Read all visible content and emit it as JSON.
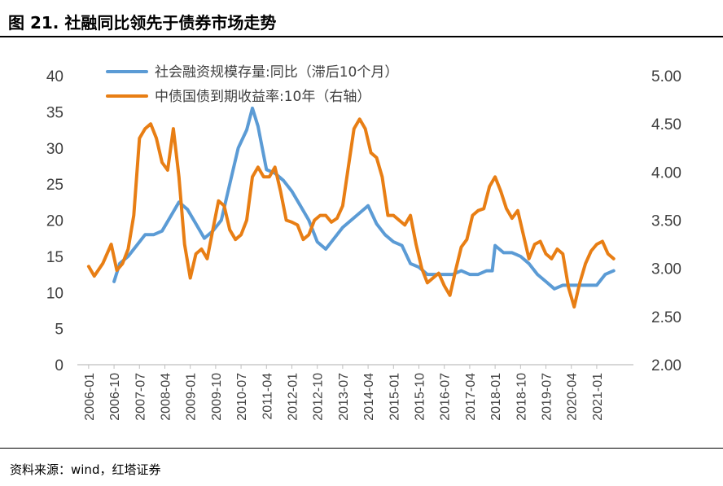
{
  "figure": {
    "title": "图 21. 社融同比领先于债券市场走势",
    "source": "资料来源：wind，红塔证券"
  },
  "chart_data": {
    "type": "line",
    "title": "",
    "legend_placement": "top-center",
    "grid": false,
    "y_left": {
      "min": 0,
      "max": 40,
      "ticks": [
        "0",
        "5",
        "10",
        "15",
        "20",
        "25",
        "30",
        "35",
        "40"
      ]
    },
    "y_right": {
      "min": 2.0,
      "max": 5.0,
      "ticks": [
        "2.00",
        "2.50",
        "3.00",
        "3.50",
        "4.00",
        "4.50",
        "5.00"
      ]
    },
    "x_ticks": [
      "2006-01",
      "2006-10",
      "2007-07",
      "2008-04",
      "2009-01",
      "2009-10",
      "2010-07",
      "2011-04",
      "2012-01",
      "2012-10",
      "2013-07",
      "2014-04",
      "2015-01",
      "2015-10",
      "2016-07",
      "2017-04",
      "2018-01",
      "2018-10",
      "2019-07",
      "2020-04",
      "2021-01"
    ],
    "series": [
      {
        "name": "社会融资规模存量:同比（滞后10个月）",
        "axis": "left",
        "color": "#5B9BD5",
        "x": [
          "2006-10",
          "2006-12",
          "2007-03",
          "2007-06",
          "2007-09",
          "2007-12",
          "2008-03",
          "2008-06",
          "2008-09",
          "2008-12",
          "2009-03",
          "2009-06",
          "2009-09",
          "2009-12",
          "2010-03",
          "2010-06",
          "2010-09",
          "2010-11",
          "2011-01",
          "2011-04",
          "2011-07",
          "2011-10",
          "2012-01",
          "2012-04",
          "2012-07",
          "2012-10",
          "2013-01",
          "2013-04",
          "2013-07",
          "2013-10",
          "2014-01",
          "2014-04",
          "2014-07",
          "2014-10",
          "2015-01",
          "2015-04",
          "2015-07",
          "2015-10",
          "2016-01",
          "2016-04",
          "2016-07",
          "2016-10",
          "2017-01",
          "2017-04",
          "2017-07",
          "2017-10",
          "2017-12",
          "2018-01",
          "2018-04",
          "2018-07",
          "2018-10",
          "2019-01",
          "2019-04",
          "2019-07",
          "2019-10",
          "2020-01",
          "2020-04",
          "2020-07",
          "2020-10",
          "2021-01",
          "2021-04",
          "2021-07"
        ],
        "y": [
          11.5,
          14,
          15,
          16.5,
          18,
          18,
          18.5,
          20.5,
          22.5,
          21.5,
          19.5,
          17.5,
          18.5,
          20,
          25,
          30,
          32.5,
          35.5,
          33,
          27,
          26.5,
          25.5,
          24,
          22,
          20,
          17,
          16,
          17.5,
          19,
          20,
          21,
          22,
          19.5,
          18,
          17,
          16.5,
          14,
          13.5,
          12.5,
          12.5,
          12.5,
          12.5,
          13,
          12.5,
          12.5,
          13,
          13,
          16.5,
          15.5,
          15.5,
          15,
          14,
          12.5,
          11.5,
          10.5,
          11,
          11,
          11,
          11,
          11,
          12.5,
          13
        ]
      },
      {
        "name": "中债国债到期收益率:10年（右轴）",
        "axis": "right",
        "color": "#E87E14",
        "x": [
          "2006-01",
          "2006-03",
          "2006-06",
          "2006-09",
          "2006-11",
          "2007-01",
          "2007-03",
          "2007-05",
          "2007-07",
          "2007-09",
          "2007-11",
          "2008-01",
          "2008-03",
          "2008-05",
          "2008-07",
          "2008-09",
          "2008-11",
          "2009-01",
          "2009-03",
          "2009-05",
          "2009-07",
          "2009-09",
          "2009-11",
          "2010-01",
          "2010-03",
          "2010-05",
          "2010-07",
          "2010-09",
          "2010-11",
          "2011-01",
          "2011-03",
          "2011-05",
          "2011-07",
          "2011-09",
          "2011-11",
          "2012-01",
          "2012-03",
          "2012-05",
          "2012-07",
          "2012-09",
          "2012-11",
          "2013-01",
          "2013-03",
          "2013-05",
          "2013-07",
          "2013-09",
          "2013-11",
          "2014-01",
          "2014-03",
          "2014-05",
          "2014-07",
          "2014-09",
          "2014-11",
          "2015-01",
          "2015-03",
          "2015-05",
          "2015-07",
          "2015-09",
          "2015-11",
          "2016-01",
          "2016-03",
          "2016-05",
          "2016-07",
          "2016-09",
          "2016-11",
          "2017-01",
          "2017-03",
          "2017-05",
          "2017-07",
          "2017-09",
          "2017-11",
          "2018-01",
          "2018-03",
          "2018-05",
          "2018-07",
          "2018-09",
          "2018-11",
          "2019-01",
          "2019-03",
          "2019-05",
          "2019-07",
          "2019-09",
          "2019-11",
          "2020-01",
          "2020-03",
          "2020-05",
          "2020-07",
          "2020-09",
          "2020-11",
          "2021-01",
          "2021-03",
          "2021-05",
          "2021-07"
        ],
        "y": [
          3.02,
          2.92,
          3.05,
          3.25,
          2.98,
          3.05,
          3.2,
          3.55,
          4.35,
          4.45,
          4.5,
          4.35,
          4.1,
          4.02,
          4.45,
          3.95,
          3.25,
          2.9,
          3.15,
          3.2,
          3.1,
          3.4,
          3.7,
          3.65,
          3.4,
          3.3,
          3.35,
          3.5,
          3.95,
          4.05,
          3.95,
          3.95,
          4.05,
          3.8,
          3.5,
          3.48,
          3.45,
          3.3,
          3.35,
          3.5,
          3.55,
          3.55,
          3.48,
          3.52,
          3.65,
          4.05,
          4.45,
          4.55,
          4.45,
          4.2,
          4.15,
          3.95,
          3.55,
          3.55,
          3.5,
          3.45,
          3.55,
          3.25,
          3.0,
          2.85,
          2.9,
          2.95,
          2.82,
          2.72,
          2.98,
          3.22,
          3.3,
          3.55,
          3.6,
          3.62,
          3.85,
          3.95,
          3.8,
          3.62,
          3.52,
          3.6,
          3.35,
          3.1,
          3.25,
          3.28,
          3.15,
          3.1,
          3.2,
          3.15,
          2.8,
          2.6,
          2.85,
          3.05,
          3.18,
          3.25,
          3.28,
          3.15,
          3.1
        ]
      }
    ]
  }
}
